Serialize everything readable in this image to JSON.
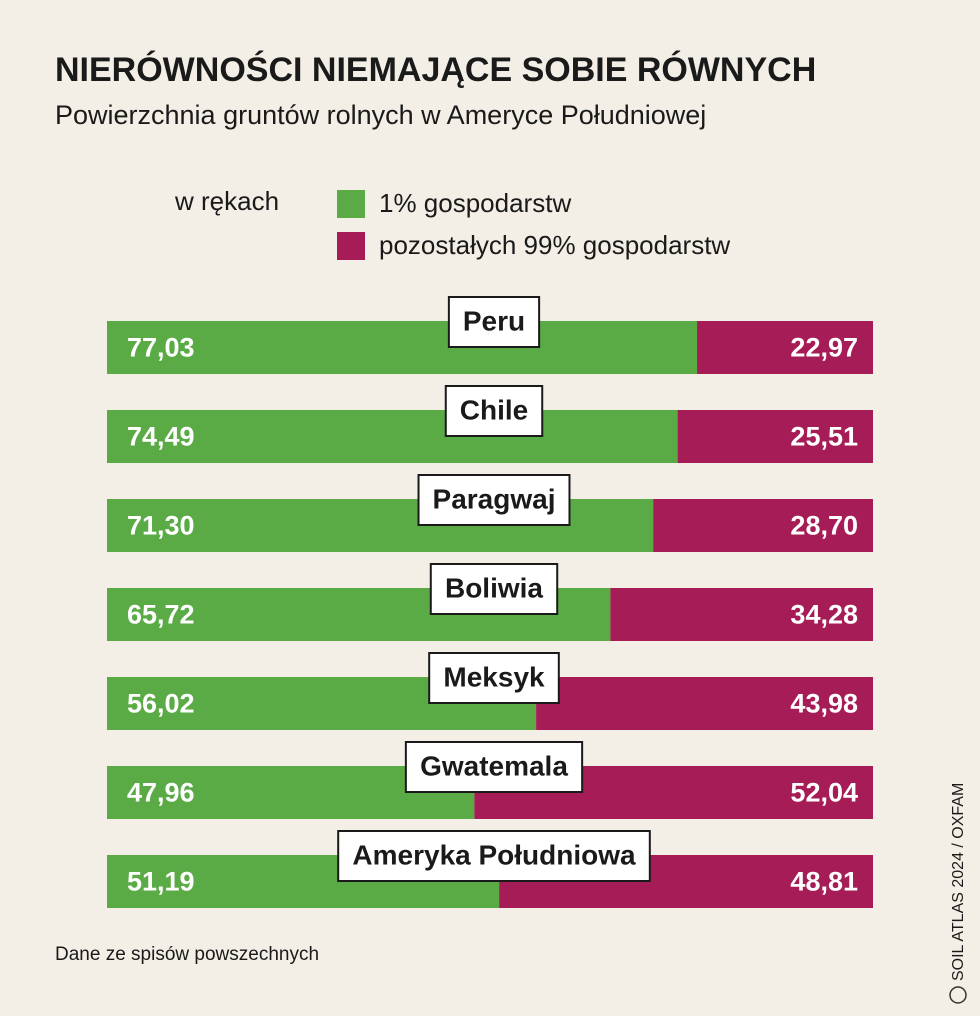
{
  "chart_data": {
    "type": "stacked-bar",
    "title": "NIERÓWNOŚCI NIEMAJĄCE SOBIE RÓWNYCH",
    "subtitle": "Powierzchnia gruntów rolnych w Ameryce Południowej",
    "legend_title": "w rękach",
    "categories": [
      "Peru",
      "Chile",
      "Paragwaj",
      "Boliwia",
      "Meksyk",
      "Gwatemala",
      "Ameryka Południowa"
    ],
    "series": [
      {
        "name": "1% gospodarstw",
        "color": "#5aab46",
        "values": [
          77.03,
          74.49,
          71.3,
          65.72,
          56.02,
          47.96,
          51.19
        ],
        "value_labels": [
          "77,03",
          "74,49",
          "71,30",
          "65,72",
          "56,02",
          "47,96",
          "51,19"
        ]
      },
      {
        "name": "pozostałych 99% gospodarstw",
        "color": "#a51c56",
        "values": [
          22.97,
          25.51,
          28.7,
          34.28,
          43.98,
          52.04,
          48.81
        ],
        "value_labels": [
          "22,97",
          "25,51",
          "28,70",
          "34,28",
          "43,98",
          "52,04",
          "48,81"
        ]
      }
    ],
    "note": "Dane ze spisów powszechnych",
    "credit": "SOIL ATLAS 2024 / OXFAM"
  }
}
